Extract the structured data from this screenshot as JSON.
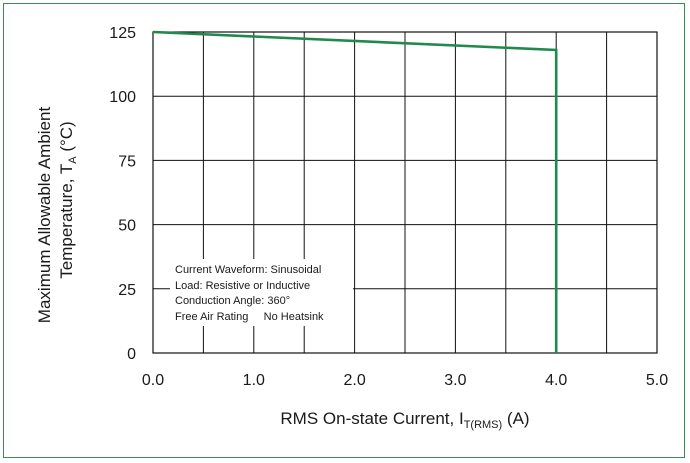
{
  "chart_data": {
    "type": "line",
    "xlabel_main": "RMS On-state Current, I",
    "xlabel_sub": "T(RMS)",
    "xlabel_unit": " (A)",
    "ylabel_line1": "Maximum Allowable Ambient",
    "ylabel_line2_main": "Temperature, T",
    "ylabel_line2_sub": "A",
    "ylabel_line2_unit": " (°C)",
    "xlim": [
      0.0,
      5.0
    ],
    "ylim": [
      0,
      125
    ],
    "xticks": [
      0.0,
      0.5,
      1.0,
      1.5,
      2.0,
      2.5,
      3.0,
      3.5,
      4.0,
      4.5,
      5.0
    ],
    "xtick_labels": [
      "0.0",
      "1.0",
      "2.0",
      "3.0",
      "4.0",
      "5.0"
    ],
    "xtick_label_values": [
      0.0,
      1.0,
      2.0,
      3.0,
      4.0,
      5.0
    ],
    "yticks": [
      0,
      25,
      50,
      75,
      100,
      125
    ],
    "ytick_labels": [
      "0",
      "25",
      "50",
      "75",
      "100",
      "125"
    ],
    "grid": true,
    "line_color": "#1f8a4c",
    "series": [
      {
        "x": [
          0.0,
          4.0,
          4.0
        ],
        "y": [
          125,
          118,
          0
        ]
      }
    ],
    "annotations": [
      "Current Waveform: Sinusoidal",
      "Load: Resistive or Inductive",
      "Conduction Angle: 360°",
      "Free Air Rating     No Heatsink"
    ]
  }
}
